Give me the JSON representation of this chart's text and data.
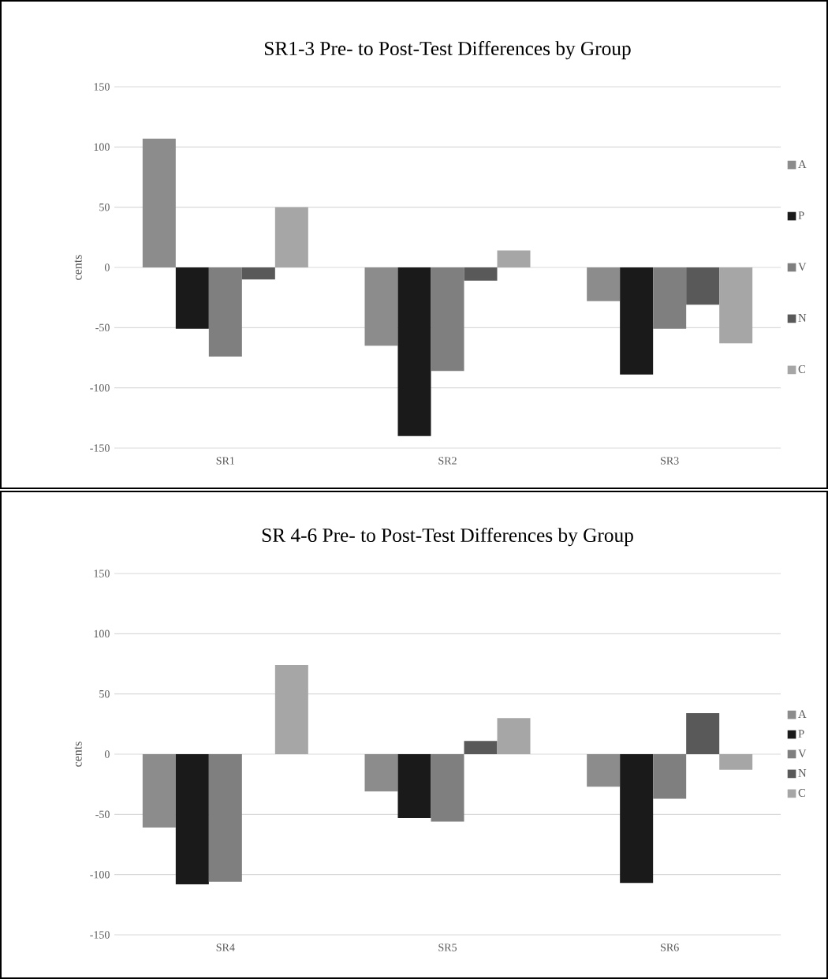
{
  "chart_data": [
    {
      "type": "bar",
      "title": "SR1-3 Pre- to Post-Test Differences by Group",
      "ylabel": "cents",
      "categories": [
        "SR1",
        "SR2",
        "SR3"
      ],
      "ylim": [
        -150,
        150
      ],
      "yticks": [
        -150,
        -100,
        -50,
        0,
        50,
        100,
        150
      ],
      "grid": "y",
      "legend": "right",
      "series": [
        {
          "name": "A",
          "color": "#8c8c8c",
          "values": [
            107,
            -65,
            -28
          ]
        },
        {
          "name": "P",
          "color": "#1a1a1a",
          "values": [
            -51,
            -140,
            -89
          ]
        },
        {
          "name": "V",
          "color": "#7f7f7f",
          "values": [
            -74,
            -86,
            -51
          ]
        },
        {
          "name": "N",
          "color": "#595959",
          "values": [
            -10,
            -11,
            -31
          ]
        },
        {
          "name": "C",
          "color": "#a6a6a6",
          "values": [
            50,
            14,
            -63
          ]
        }
      ]
    },
    {
      "type": "bar",
      "title": "SR 4-6 Pre- to Post-Test Differences by Group",
      "ylabel": "cents",
      "categories": [
        "SR4",
        "SR5",
        "SR6"
      ],
      "ylim": [
        -150,
        150
      ],
      "yticks": [
        -150,
        -100,
        -50,
        0,
        50,
        100,
        150
      ],
      "grid": "y",
      "legend": "right",
      "series": [
        {
          "name": "A",
          "color": "#8c8c8c",
          "values": [
            -61,
            -31,
            -27
          ]
        },
        {
          "name": "P",
          "color": "#1a1a1a",
          "values": [
            -108,
            -53,
            -107
          ]
        },
        {
          "name": "V",
          "color": "#7f7f7f",
          "values": [
            -106,
            -56,
            -37
          ]
        },
        {
          "name": "N",
          "color": "#595959",
          "values": [
            0,
            11,
            34
          ]
        },
        {
          "name": "C",
          "color": "#a6a6a6",
          "values": [
            74,
            30,
            -13
          ]
        }
      ]
    }
  ]
}
